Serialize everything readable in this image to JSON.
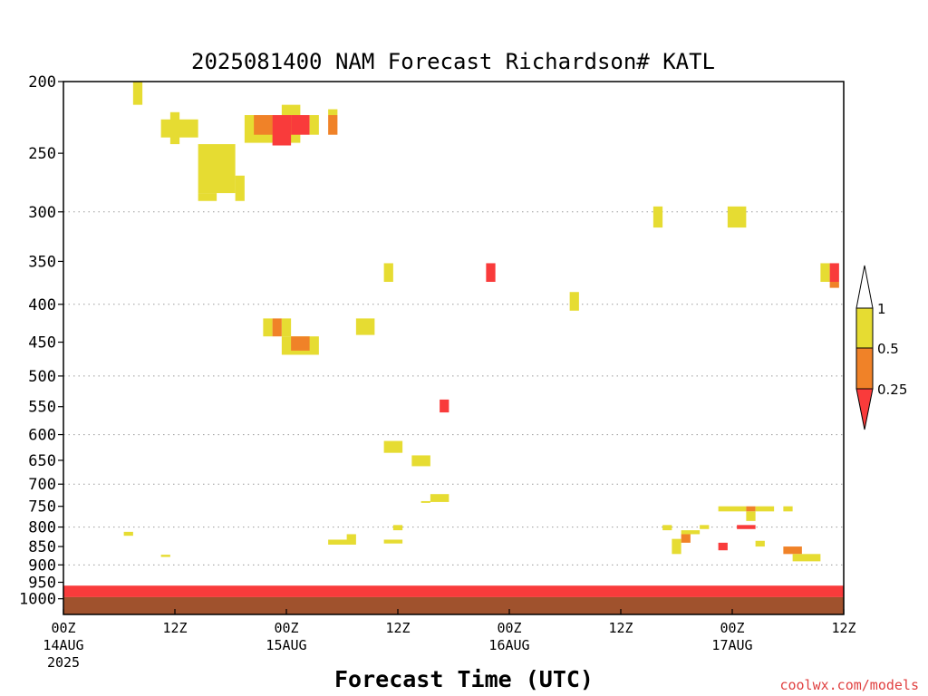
{
  "chart_data": {
    "type": "heatmap",
    "title": "2025081400 NAM Forecast Richardson# KATL",
    "xlabel": "Forecast Time (UTC)",
    "ylabel": "",
    "credit": "coolwx.com/models",
    "y_scale": "log-pressure (hPa, inverted)",
    "ylim": [
      1050,
      200
    ],
    "xlim_hours": [
      0,
      84
    ],
    "grid": "horizontal dotted at pressure levels",
    "y_ticks": [
      200,
      250,
      300,
      350,
      400,
      450,
      500,
      550,
      600,
      650,
      700,
      750,
      800,
      850,
      900,
      950,
      1000
    ],
    "y_gridlines": [
      300,
      400,
      500,
      600,
      700,
      800,
      900,
      1000
    ],
    "x_ticks": [
      {
        "hour": 0,
        "lines": [
          "00Z",
          "14AUG",
          "2025"
        ]
      },
      {
        "hour": 12,
        "lines": [
          "12Z"
        ]
      },
      {
        "hour": 24,
        "lines": [
          "00Z",
          "15AUG"
        ]
      },
      {
        "hour": 36,
        "lines": [
          "12Z"
        ]
      },
      {
        "hour": 48,
        "lines": [
          "00Z",
          "16AUG"
        ]
      },
      {
        "hour": 60,
        "lines": [
          "12Z"
        ]
      },
      {
        "hour": 72,
        "lines": [
          "00Z",
          "17AUG"
        ]
      },
      {
        "hour": 84,
        "lines": [
          "12Z"
        ]
      }
    ],
    "colorbar": {
      "levels": [
        "0.25",
        "0.5",
        "1"
      ],
      "bins": [
        {
          "range": "<0.25",
          "color": "#f93b3b"
        },
        {
          "range": "0.25-0.5",
          "color": "#f08228"
        },
        {
          "range": "0.5-1",
          "color": "#e6dc32"
        },
        {
          "range": ">1",
          "color": "#ffffff"
        }
      ]
    },
    "ground": {
      "color": "#a0522d",
      "top_hpa": 995
    },
    "cells": [
      {
        "t0": 7.5,
        "t1": 8.5,
        "p0": 200,
        "p1": 215,
        "c": "y"
      },
      {
        "t0": 10.5,
        "t1": 14.5,
        "p0": 225,
        "p1": 238,
        "c": "y"
      },
      {
        "t0": 11.5,
        "t1": 12.5,
        "p0": 220,
        "p1": 243,
        "c": "y"
      },
      {
        "t0": 14.5,
        "t1": 18.5,
        "p0": 243,
        "p1": 283,
        "c": "y"
      },
      {
        "t0": 14.5,
        "t1": 16.5,
        "p0": 283,
        "p1": 290,
        "c": "y"
      },
      {
        "t0": 18.5,
        "t1": 19.5,
        "p0": 268,
        "p1": 290,
        "c": "y"
      },
      {
        "t0": 19.5,
        "t1": 25.5,
        "p0": 222,
        "p1": 242,
        "c": "y"
      },
      {
        "t0": 20.5,
        "t1": 22.5,
        "p0": 222,
        "p1": 236,
        "c": "o"
      },
      {
        "t0": 22.5,
        "t1": 24.5,
        "p0": 222,
        "p1": 244,
        "c": "r"
      },
      {
        "t0": 24.5,
        "t1": 26.5,
        "p0": 222,
        "p1": 236,
        "c": "r"
      },
      {
        "t0": 23.5,
        "t1": 25.5,
        "p0": 215,
        "p1": 222,
        "c": "y"
      },
      {
        "t0": 26.5,
        "t1": 27.5,
        "p0": 222,
        "p1": 236,
        "c": "y"
      },
      {
        "t0": 28.5,
        "t1": 29.5,
        "p0": 222,
        "p1": 236,
        "c": "o"
      },
      {
        "t0": 28.5,
        "t1": 29.5,
        "p0": 218,
        "p1": 222,
        "c": "y"
      },
      {
        "t0": 21.5,
        "t1": 22.5,
        "p0": 418,
        "p1": 442,
        "c": "y"
      },
      {
        "t0": 22.5,
        "t1": 23.5,
        "p0": 418,
        "p1": 442,
        "c": "o"
      },
      {
        "t0": 23.5,
        "t1": 24.5,
        "p0": 418,
        "p1": 442,
        "c": "y"
      },
      {
        "t0": 23.5,
        "t1": 27.5,
        "p0": 442,
        "p1": 468,
        "c": "y"
      },
      {
        "t0": 24.5,
        "t1": 26.5,
        "p0": 442,
        "p1": 462,
        "c": "o"
      },
      {
        "t0": 31.5,
        "t1": 33.5,
        "p0": 418,
        "p1": 440,
        "c": "y"
      },
      {
        "t0": 34.5,
        "t1": 35.5,
        "p0": 352,
        "p1": 373,
        "c": "y"
      },
      {
        "t0": 45.5,
        "t1": 46.5,
        "p0": 352,
        "p1": 373,
        "c": "r"
      },
      {
        "t0": 54.5,
        "t1": 55.5,
        "p0": 385,
        "p1": 408,
        "c": "y"
      },
      {
        "t0": 63.5,
        "t1": 64.5,
        "p0": 295,
        "p1": 315,
        "c": "y"
      },
      {
        "t0": 71.5,
        "t1": 73.5,
        "p0": 295,
        "p1": 315,
        "c": "y"
      },
      {
        "t0": 81.5,
        "t1": 82.5,
        "p0": 352,
        "p1": 373,
        "c": "y"
      },
      {
        "t0": 82.5,
        "t1": 83.5,
        "p0": 352,
        "p1": 373,
        "c": "r"
      },
      {
        "t0": 82.5,
        "t1": 83.5,
        "p0": 373,
        "p1": 380,
        "c": "o"
      },
      {
        "t0": 40.5,
        "t1": 41.5,
        "p0": 538,
        "p1": 560,
        "c": "r"
      },
      {
        "t0": 34.5,
        "t1": 36.5,
        "p0": 612,
        "p1": 635,
        "c": "y"
      },
      {
        "t0": 37.5,
        "t1": 39.5,
        "p0": 640,
        "p1": 662,
        "c": "y"
      },
      {
        "t0": 39.5,
        "t1": 41.5,
        "p0": 722,
        "p1": 740,
        "c": "y"
      },
      {
        "t0": 38.5,
        "t1": 39.5,
        "p0": 738,
        "p1": 742,
        "c": "y"
      },
      {
        "t0": 35.5,
        "t1": 36.5,
        "p0": 795,
        "p1": 808,
        "c": "y"
      },
      {
        "t0": 34.5,
        "t1": 36.5,
        "p0": 832,
        "p1": 842,
        "c": "y"
      },
      {
        "t0": 28.5,
        "t1": 31.5,
        "p0": 832,
        "p1": 845,
        "c": "y"
      },
      {
        "t0": 30.5,
        "t1": 31.5,
        "p0": 818,
        "p1": 832,
        "c": "y"
      },
      {
        "t0": 6.5,
        "t1": 7.5,
        "p0": 812,
        "p1": 822,
        "c": "y"
      },
      {
        "t0": 10.5,
        "t1": 11.5,
        "p0": 872,
        "p1": 878,
        "c": "y"
      },
      {
        "t0": 70.5,
        "t1": 73.5,
        "p0": 750,
        "p1": 762,
        "c": "y"
      },
      {
        "t0": 73.5,
        "t1": 74.5,
        "p0": 750,
        "p1": 762,
        "c": "o"
      },
      {
        "t0": 74.5,
        "t1": 76.5,
        "p0": 750,
        "p1": 762,
        "c": "y"
      },
      {
        "t0": 73.5,
        "t1": 74.5,
        "p0": 762,
        "p1": 785,
        "c": "y"
      },
      {
        "t0": 77.5,
        "t1": 78.5,
        "p0": 750,
        "p1": 762,
        "c": "y"
      },
      {
        "t0": 72.5,
        "t1": 74.5,
        "p0": 795,
        "p1": 805,
        "c": "r"
      },
      {
        "t0": 64.5,
        "t1": 65.5,
        "p0": 795,
        "p1": 808,
        "c": "y"
      },
      {
        "t0": 68.5,
        "t1": 69.5,
        "p0": 795,
        "p1": 805,
        "c": "y"
      },
      {
        "t0": 66.5,
        "t1": 68.5,
        "p0": 808,
        "p1": 818,
        "c": "y"
      },
      {
        "t0": 66.5,
        "t1": 67.5,
        "p0": 818,
        "p1": 840,
        "c": "o"
      },
      {
        "t0": 65.5,
        "t1": 66.5,
        "p0": 830,
        "p1": 870,
        "c": "y"
      },
      {
        "t0": 70.5,
        "t1": 71.5,
        "p0": 840,
        "p1": 860,
        "c": "r"
      },
      {
        "t0": 74.5,
        "t1": 75.5,
        "p0": 835,
        "p1": 850,
        "c": "y"
      },
      {
        "t0": 77.5,
        "t1": 79.5,
        "p0": 850,
        "p1": 870,
        "c": "o"
      },
      {
        "t0": 78.5,
        "t1": 81.5,
        "p0": 870,
        "p1": 890,
        "c": "y"
      },
      {
        "t0": 0,
        "t1": 84,
        "p0": 960,
        "p1": 995,
        "c": "r"
      }
    ]
  }
}
